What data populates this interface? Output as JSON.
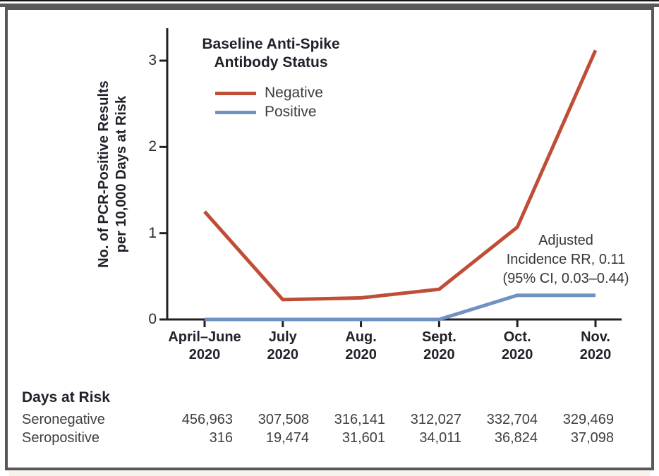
{
  "figure": {
    "y_axis_label_line1": "No. of PCR-Positive Results",
    "y_axis_label_line2": "per 10,000 Days at Risk",
    "legend": {
      "title_line1": "Baseline Anti-Spike",
      "title_line2": "Antibody Status",
      "items": [
        {
          "label": "Negative",
          "color": "#c04e37"
        },
        {
          "label": "Positive",
          "color": "#7092c3"
        }
      ]
    },
    "annotation": {
      "line1": "Adjusted",
      "line2": "Incidence RR, 0.11",
      "line3": "(95% CI, 0.03–0.44)"
    },
    "table": {
      "title": "Days at Risk",
      "rows": [
        {
          "label": "Seronegative",
          "values": [
            "456,963",
            "307,508",
            "316,141",
            "312,027",
            "332,704",
            "329,469"
          ]
        },
        {
          "label": "Seropositive",
          "values": [
            "316",
            "19,474",
            "31,601",
            "34,011",
            "36,824",
            "37,098"
          ]
        }
      ]
    }
  },
  "chart_data": {
    "type": "line",
    "title": "",
    "xlabel": "",
    "ylabel": "No. of PCR-Positive Results per 10,000 Days at Risk",
    "x_categories": [
      [
        "April–June",
        "2020"
      ],
      [
        "July",
        "2020"
      ],
      [
        "Aug.",
        "2020"
      ],
      [
        "Sept.",
        "2020"
      ],
      [
        "Oct.",
        "2020"
      ],
      [
        "Nov.",
        "2020"
      ]
    ],
    "series": [
      {
        "name": "Negative",
        "color": "#c04e37",
        "values": [
          1.25,
          0.23,
          0.25,
          0.35,
          1.07,
          3.12
        ]
      },
      {
        "name": "Positive",
        "color": "#7092c3",
        "values": [
          0,
          0,
          0,
          0,
          0.28,
          0.28
        ]
      }
    ],
    "y_ticks": [
      0,
      1,
      2,
      3
    ],
    "ylim": [
      0,
      3.4
    ],
    "grid": false,
    "legend_title": "Baseline Anti-Spike Antibody Status",
    "legend_position": "top-left-inside",
    "annotation": "Adjusted Incidence RR, 0.11 (95% CI, 0.03–0.44)",
    "axis_color": "#231f20"
  }
}
